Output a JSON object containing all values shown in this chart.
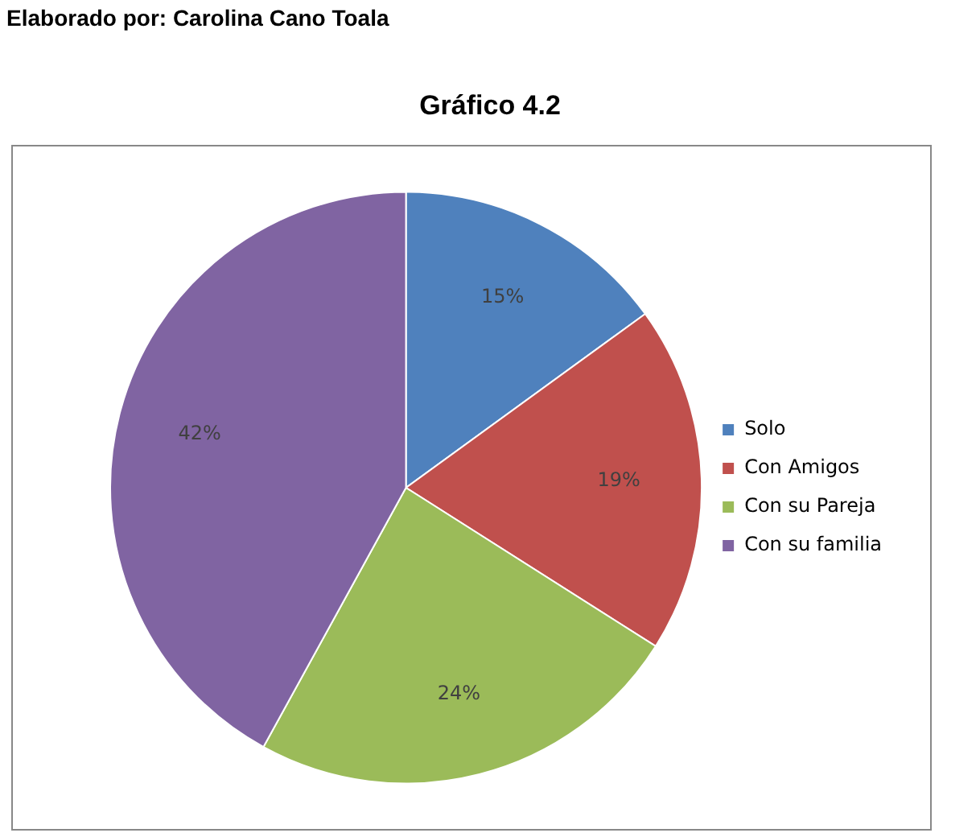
{
  "chart_data": {
    "type": "pie",
    "title": "Gráfico 4.2",
    "annotations": [
      "Elaborado por: Carolina Cano Toala"
    ],
    "categories": [
      "Solo",
      "Con Amigos",
      "Con su Pareja",
      "Con su familia"
    ],
    "values": [
      15,
      19,
      24,
      42
    ],
    "colors": [
      "#4f81bd",
      "#c0504d",
      "#9bbb59",
      "#8064a2"
    ],
    "value_labels": [
      "15%",
      "19%",
      "24%",
      "42%"
    ],
    "legend": "right"
  }
}
